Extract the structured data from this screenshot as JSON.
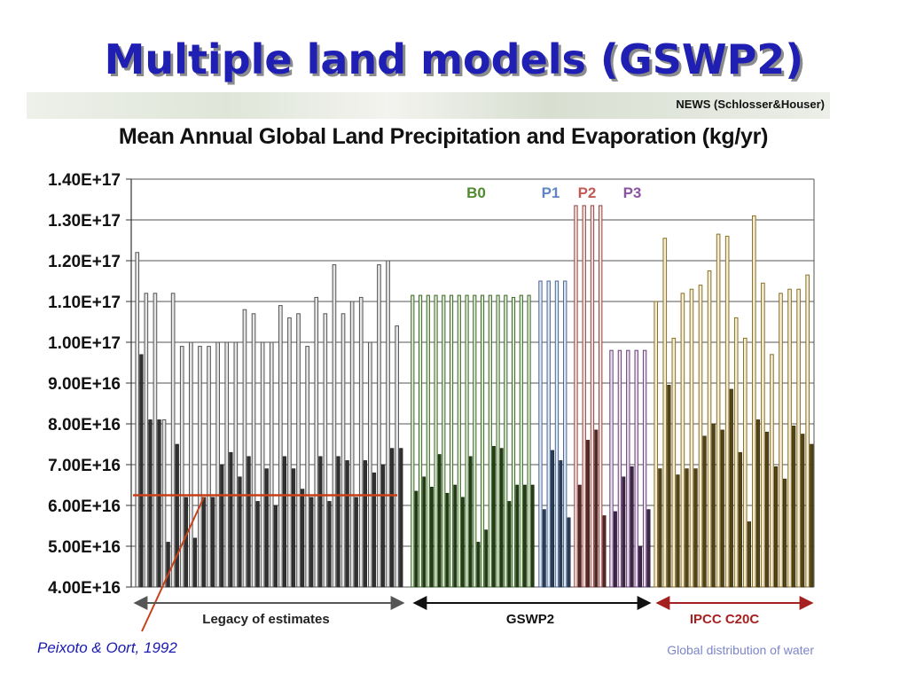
{
  "slide": {
    "title": "Multiple land models (GSWP2)",
    "banner_credit": "NEWS (Schlosser&Houser)",
    "citation": "Peixoto & Oort, 1992",
    "footer": "Global distribution of water"
  },
  "colors": {
    "title": "#1f1fb4",
    "legacy": "#6e6e6e",
    "B0": "#4f8a2f",
    "P1": "#5f86c2",
    "P2": "#c05a55",
    "P3": "#8a54a0",
    "IPCC": "#b8962e",
    "reference_line": "#c8401a",
    "ipcc_arrow": "#a52020"
  },
  "chart_data": {
    "type": "bar",
    "title": "Mean Annual Global Land Precipitation and Evaporation (kg/yr)",
    "ylim": [
      4e+16,
      1.4e+17
    ],
    "yticks": [
      "1.40E+17",
      "1.30E+17",
      "1.20E+17",
      "1.10E+17",
      "1.00E+17",
      "9.00E+16",
      "8.00E+16",
      "7.00E+16",
      "6.00E+16",
      "5.00E+16",
      "4.00E+16"
    ],
    "grid": true,
    "group_labels": {
      "B0": "B0",
      "P1": "P1",
      "P2": "P2",
      "P3": "P3"
    },
    "sections": [
      {
        "label": "Legacy of estimates",
        "group": "legacy"
      },
      {
        "label": "GSWP2",
        "group": "gswp2"
      },
      {
        "label": "IPCC C20C",
        "group": "ipcc"
      }
    ],
    "reference_line": {
      "value": 6.25e+16,
      "label": "Peixoto & Oort, 1992"
    },
    "series": [
      {
        "group": "legacy",
        "precip": [
          1.22,
          1.12,
          1.12,
          0.81,
          1.12,
          0.99,
          1.0,
          0.99,
          0.99,
          1.0,
          1.0,
          1.0,
          1.08,
          1.07,
          1.0,
          1.0,
          1.09,
          1.06,
          1.07,
          0.99,
          1.11,
          1.07,
          1.19,
          1.07,
          1.1,
          1.11,
          1.0,
          1.19,
          1.2,
          1.04
        ],
        "evap": [
          0.97,
          0.81,
          0.81,
          0.51,
          0.75,
          0.62,
          0.52,
          0.62,
          0.62,
          0.7,
          0.73,
          0.67,
          0.72,
          0.61,
          0.69,
          0.6,
          0.72,
          0.69,
          0.64,
          0.62,
          0.72,
          0.61,
          0.72,
          0.71,
          0.62,
          0.71,
          0.68,
          0.7,
          0.74,
          0.74
        ]
      },
      {
        "group": "B0",
        "precip": [
          1.115,
          1.115,
          1.115,
          1.115,
          1.115,
          1.115,
          1.115,
          1.115,
          1.115,
          1.115,
          1.115,
          1.115,
          1.115,
          1.11,
          1.115,
          1.115
        ],
        "evap": [
          0.635,
          0.67,
          0.645,
          0.725,
          0.63,
          0.65,
          0.62,
          0.72,
          0.51,
          0.54,
          0.745,
          0.74,
          0.61,
          0.65,
          0.65,
          0.65
        ]
      },
      {
        "group": "P1",
        "precip": [
          1.15,
          1.15,
          1.15,
          1.15
        ],
        "evap": [
          0.59,
          0.735,
          0.71,
          0.57
        ]
      },
      {
        "group": "P2",
        "precip": [
          1.335,
          1.335,
          1.335,
          1.335
        ],
        "evap": [
          0.65,
          0.76,
          0.785,
          0.575
        ]
      },
      {
        "group": "P3",
        "precip": [
          0.98,
          0.98,
          0.98,
          0.98,
          0.98
        ],
        "evap": [
          0.585,
          0.67,
          0.695,
          0.5,
          0.59
        ]
      },
      {
        "group": "IPCC",
        "precip": [
          1.1,
          1.255,
          1.01,
          1.12,
          1.13,
          1.14,
          1.175,
          1.265,
          1.26,
          1.06,
          1.01,
          1.31,
          1.145,
          0.97,
          1.12,
          1.13,
          1.13,
          1.165
        ],
        "evap": [
          0.69,
          0.895,
          0.675,
          0.69,
          0.69,
          0.77,
          0.8,
          0.785,
          0.885,
          0.73,
          0.56,
          0.81,
          0.78,
          0.695,
          0.665,
          0.795,
          0.775,
          0.75
        ]
      }
    ],
    "value_scale": "values × 1.0E+17 kg/yr"
  }
}
